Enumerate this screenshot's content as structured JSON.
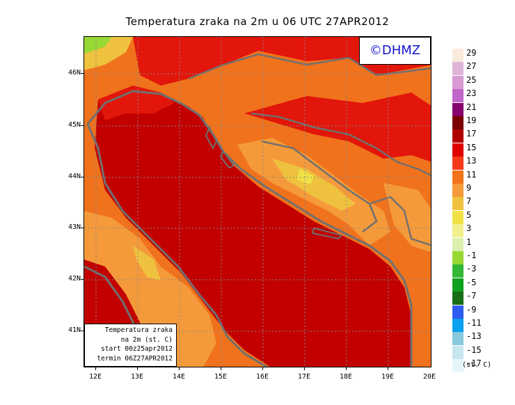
{
  "title": "Temperatura zraka na 2m u 06 UTC 27APR2012",
  "logo": "©DHMZ",
  "info": {
    "line1": "Temperatura zraka",
    "line2": "na 2m (st. C)",
    "line3": "start 00z25apr2012",
    "line4": "termin 06Z27APR2012"
  },
  "axes": {
    "lat_labels": [
      "46N",
      "45N",
      "44N",
      "43N",
      "42N",
      "41N"
    ],
    "lon_labels": [
      "12E",
      "13E",
      "14E",
      "15E",
      "16E",
      "17E",
      "18E",
      "19E",
      "20E"
    ]
  },
  "legend": {
    "unit": "(st. C)",
    "labels": [
      "29",
      "27",
      "25",
      "23",
      "21",
      "19",
      "17",
      "15",
      "13",
      "11",
      "9",
      "7",
      "5",
      "3",
      "1",
      "-1",
      "-3",
      "-5",
      "-7",
      "-9",
      "-11",
      "-13",
      "-15",
      "-17"
    ],
    "colors": [
      "#f9eadc",
      "#e0b4d8",
      "#d79ad2",
      "#c066c8",
      "#86006e",
      "#7a0000",
      "#b00000",
      "#e00000",
      "#f53a1c",
      "#f3741a",
      "#f59a3a",
      "#eec23e",
      "#f0e246",
      "#f2f08c",
      "#dcf0b0",
      "#98d835",
      "#32b836",
      "#10a020",
      "#166e16",
      "#2e5cf0",
      "#0ba0f0",
      "#86c8dc",
      "#c8e6f0",
      "#e6f5fa"
    ]
  },
  "colors": {
    "sea": "#c20000",
    "coast": "#707070",
    "grid": "#888888"
  }
}
